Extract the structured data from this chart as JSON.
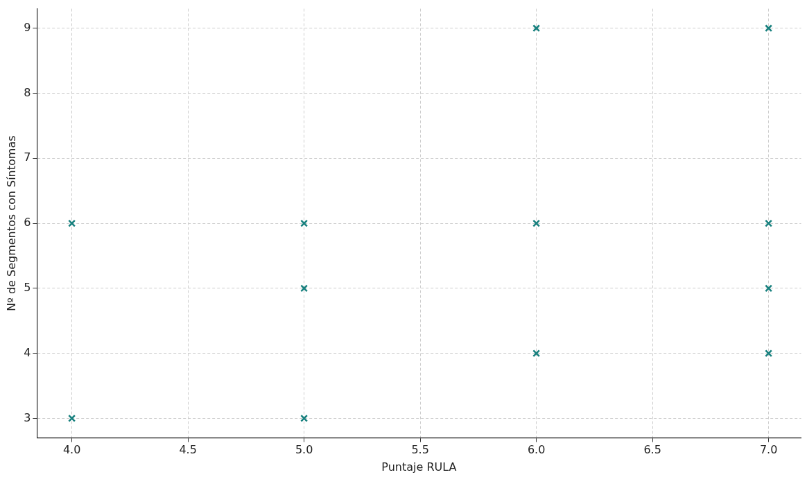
{
  "chart_data": {
    "type": "scatter",
    "xlabel": "Puntaje RULA",
    "ylabel": "Nº de Segmentos con Síntomas",
    "x": [
      4,
      4,
      5,
      5,
      5,
      6,
      6,
      6,
      7,
      7,
      7,
      7
    ],
    "values": [
      6,
      3,
      6,
      5,
      3,
      9,
      6,
      4,
      9,
      6,
      5,
      4
    ],
    "color": "#17807e",
    "marker": "cross",
    "grid": true,
    "xlim": [
      3.85,
      7.14
    ],
    "ylim": [
      2.7,
      9.3
    ],
    "xticks": [
      {
        "value": 4,
        "label": "4.0"
      },
      {
        "value": 4.5,
        "label": "4.5"
      },
      {
        "value": 5,
        "label": "5.0"
      },
      {
        "value": 5.5,
        "label": "5.5"
      },
      {
        "value": 6,
        "label": "6.0"
      },
      {
        "value": 6.5,
        "label": "6.5"
      },
      {
        "value": 7,
        "label": "7.0"
      }
    ],
    "yticks": [
      3,
      4,
      5,
      6,
      7,
      8,
      9
    ]
  }
}
